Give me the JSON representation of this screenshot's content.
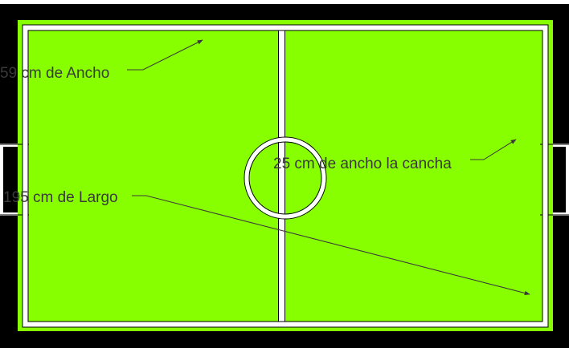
{
  "colors": {
    "frame": "#000000",
    "field": "#88ff00",
    "lines": "#ffffff",
    "line_edge": "#000000",
    "annotation": "#3a3a3a"
  },
  "annotations": {
    "width_label": "59 cm de Ancho",
    "field_width_label": "25 cm de ancho la cancha",
    "length_label": "195 cm de Largo"
  }
}
